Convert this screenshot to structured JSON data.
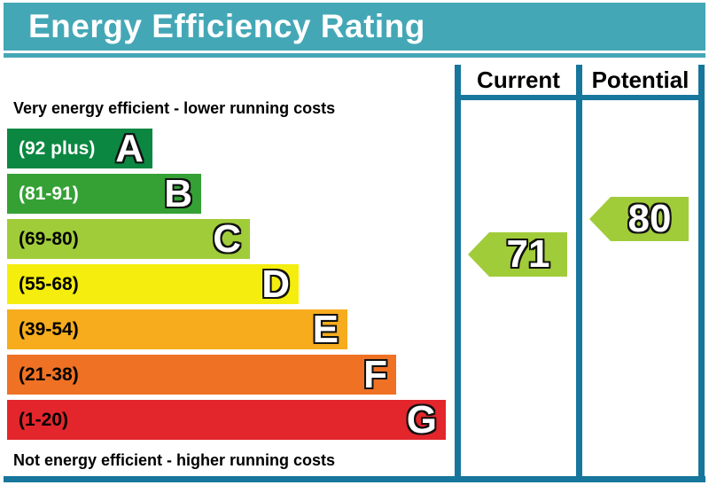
{
  "title": "Energy Efficiency Rating",
  "notes": {
    "top": "Very energy efficient - lower running costs",
    "bottom": "Not energy efficient - higher running costs"
  },
  "columns": [
    {
      "label": "Current"
    },
    {
      "label": "Potential"
    }
  ],
  "colors": {
    "header_teal": "#44A7B6",
    "table_border_teal": "#17769B",
    "arrow_green": "#A1CC3A"
  },
  "chart_data": {
    "type": "bar",
    "title": "Energy Efficiency Rating",
    "bands": [
      {
        "letter": "A",
        "range_label": "(92 plus)",
        "min": 92,
        "max": 100,
        "color": "#0B8741",
        "label_color": "#FFFFFF"
      },
      {
        "letter": "B",
        "range_label": "(81-91)",
        "min": 81,
        "max": 91,
        "color": "#35A135",
        "label_color": "#FFFFFF"
      },
      {
        "letter": "C",
        "range_label": "(69-80)",
        "min": 69,
        "max": 80,
        "color": "#A1CC3A",
        "label_color": "#000000"
      },
      {
        "letter": "D",
        "range_label": "(55-68)",
        "min": 55,
        "max": 68,
        "color": "#F4ED0E",
        "label_color": "#000000"
      },
      {
        "letter": "E",
        "range_label": "(39-54)",
        "min": 39,
        "max": 54,
        "color": "#F6AC1D",
        "label_color": "#000000"
      },
      {
        "letter": "F",
        "range_label": "(21-38)",
        "min": 21,
        "max": 38,
        "color": "#EF7123",
        "label_color": "#000000"
      },
      {
        "letter": "G",
        "range_label": "(1-20)",
        "min": 1,
        "max": 20,
        "color": "#E3262C",
        "label_color": "#000000"
      }
    ],
    "ratings": {
      "current": {
        "value": "71",
        "band": "C",
        "color": "#A1CC3A"
      },
      "potential": {
        "value": "80",
        "band": "C",
        "color": "#A1CC3A"
      }
    }
  }
}
